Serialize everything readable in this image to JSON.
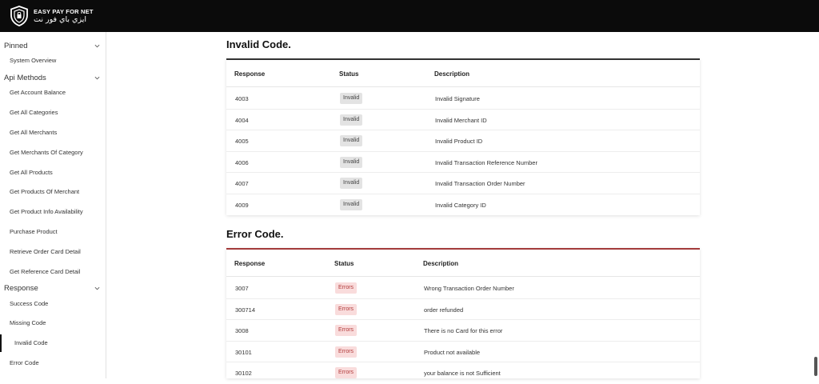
{
  "header": {
    "brand_en": "EASY PAY FOR NET",
    "brand_ar": "ايزي باي فور نت",
    "logo_icon": "shield-logo-icon",
    "background": "#0b0b0b"
  },
  "sidebar": {
    "groups": [
      {
        "label": "Pinned",
        "items": [
          "System Overview"
        ]
      },
      {
        "label": "Api Methods",
        "items": [
          "Get Account Balance",
          "Get All Categories",
          "Get All Merchants",
          "Get Merchants Of Category",
          "Get All Products",
          "Get Products Of Merchant",
          "Get Product Info Availability",
          "Purchase Product",
          "Retrieve Order Card Detail",
          "Get Reference Card Detail"
        ]
      },
      {
        "label": "Response",
        "items": [
          "Success Code",
          "Missing Code",
          "Invalid Code",
          "Error Code"
        ]
      }
    ],
    "active_item": "Invalid Code"
  },
  "invalid_section": {
    "title": "Invalid Code.",
    "accent_color": "#333333",
    "columns": [
      "Response",
      "Status",
      "Description"
    ],
    "rows": [
      {
        "code": "4003",
        "status": "Invalid",
        "description": "Invalid Signature"
      },
      {
        "code": "4004",
        "status": "Invalid",
        "description": "Invalid Merchant ID"
      },
      {
        "code": "4005",
        "status": "Invalid",
        "description": "Invalid Product ID"
      },
      {
        "code": "4006",
        "status": "Invalid",
        "description": "Invalid Transaction Reference Number"
      },
      {
        "code": "4007",
        "status": "Invalid",
        "description": "Invalid Transaction Order Number"
      },
      {
        "code": "4009",
        "status": "Invalid",
        "description": "Invalid Category ID"
      }
    ]
  },
  "error_section": {
    "title": "Error Code.",
    "accent_color": "#a33a3a",
    "columns": [
      "Response",
      "Status",
      "Description"
    ],
    "rows": [
      {
        "code": "3007",
        "status": "Errors",
        "description": "Wrong Transaction Order Number"
      },
      {
        "code": "300714",
        "status": "Errors",
        "description": "order refunded"
      },
      {
        "code": "3008",
        "status": "Errors",
        "description": "There is no Card for this error"
      },
      {
        "code": "30101",
        "status": "Errors",
        "description": "Product not available"
      },
      {
        "code": "30102",
        "status": "Errors",
        "description": "your balance is not Sufficient"
      }
    ]
  }
}
